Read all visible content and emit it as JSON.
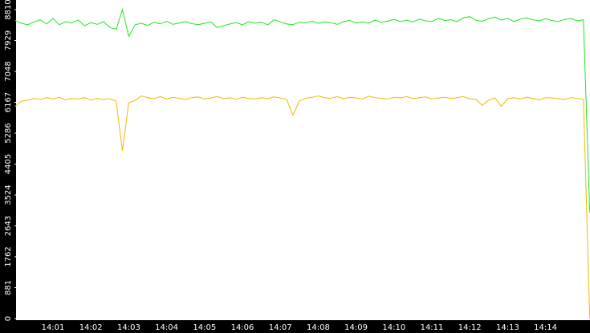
{
  "chart_data": {
    "type": "line",
    "categories": [
      null,
      null,
      null,
      null,
      null,
      null,
      "14:01",
      null,
      null,
      null,
      null,
      null,
      "14:02",
      null,
      null,
      null,
      null,
      null,
      "14:03",
      null,
      null,
      null,
      null,
      null,
      "14:04",
      null,
      null,
      null,
      null,
      null,
      "14:05",
      null,
      null,
      null,
      null,
      null,
      "14:06",
      null,
      null,
      null,
      null,
      null,
      "14:07",
      null,
      null,
      null,
      null,
      null,
      "14:08",
      null,
      null,
      null,
      null,
      null,
      "14:09",
      null,
      null,
      null,
      null,
      null,
      "14:10",
      null,
      null,
      null,
      null,
      null,
      "14:11",
      null,
      null,
      null,
      null,
      null,
      "14:12",
      null,
      null,
      null,
      null,
      null,
      "14:13",
      null,
      null,
      null,
      null,
      null,
      "14:14",
      null,
      null,
      null,
      null,
      null,
      null,
      null
    ],
    "series": [
      {
        "color": "#1ee61e",
        "values": [
          8500,
          8420,
          8380,
          8460,
          8520,
          8400,
          8560,
          8380,
          8470,
          8430,
          8510,
          8350,
          8440,
          8390,
          8470,
          8300,
          8250,
          8810,
          8050,
          8380,
          8420,
          8360,
          8450,
          8400,
          8480,
          8390,
          8430,
          8470,
          8410,
          8380,
          8420,
          8460,
          8300,
          8350,
          8400,
          8440,
          8380,
          8470,
          8420,
          8450,
          8380,
          8520,
          8460,
          8400,
          8380,
          8450,
          8430,
          8480,
          8420,
          8460,
          8440,
          8390,
          8470,
          8500,
          8430,
          8460,
          8420,
          8510,
          8450,
          8480,
          8530,
          8470,
          8510,
          8460,
          8540,
          8490,
          8470,
          8560,
          8500,
          8520,
          8470,
          8580,
          8610,
          8500,
          8480,
          8550,
          8600,
          8510,
          8560,
          8470,
          8540,
          8580,
          8520,
          8490,
          8550,
          8500,
          8470,
          8530,
          8560,
          8490,
          8520,
          3020
        ]
      },
      {
        "color": "#eebb00",
        "values": [
          6050,
          6200,
          6230,
          6280,
          6250,
          6300,
          6260,
          6310,
          6240,
          6280,
          6260,
          6300,
          6230,
          6280,
          6250,
          6270,
          6200,
          4780,
          6150,
          6220,
          6350,
          6300,
          6270,
          6330,
          6260,
          6310,
          6280,
          6250,
          6300,
          6320,
          6260,
          6290,
          6330,
          6270,
          6300,
          6250,
          6310,
          6280,
          6260,
          6300,
          6270,
          6320,
          6290,
          6250,
          5800,
          6200,
          6280,
          6310,
          6350,
          6300,
          6280,
          6330,
          6270,
          6310,
          6290,
          6260,
          6340,
          6300,
          6280,
          6260,
          6310,
          6290,
          6330,
          6270,
          6300,
          6320,
          6260,
          6290,
          6310,
          6280,
          6300,
          6330,
          6260,
          6250,
          6080,
          6230,
          6290,
          6050,
          6270,
          6300,
          6260,
          6310,
          6280,
          6240,
          6300,
          6290,
          6270,
          6250,
          6300,
          6280,
          6260,
          0
        ]
      }
    ],
    "ylim": [
      0,
      8810
    ],
    "yticks": [
      0,
      881,
      1762,
      2643,
      3524,
      4405,
      5286,
      6167,
      7048,
      7929,
      8810
    ]
  }
}
